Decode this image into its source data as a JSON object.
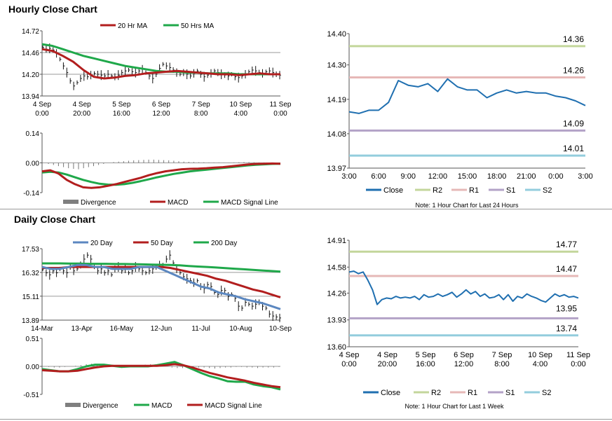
{
  "sections": {
    "hourly_title": "Hourly Close Chart",
    "daily_title": "Daily Close Chart"
  },
  "colors": {
    "red": "#b21e1e",
    "green": "#1fa84a",
    "blue": "#1f6fb0",
    "steel": "#5b87c0",
    "black": "#1a1a1a",
    "gray": "#7f7f7f",
    "r2": "#c3d69b",
    "r1": "#e6b8b7",
    "s1": "#b3a2c7",
    "s2": "#93cddd"
  },
  "chart_data": [
    {
      "id": "hourly_price",
      "type": "line",
      "title": "",
      "legend": [
        "20 Hr MA",
        "50 Hrs MA"
      ],
      "y_ticks": [
        "14.72",
        "14.46",
        "14.20",
        "13.94"
      ],
      "ylim": [
        13.94,
        14.72
      ],
      "x_ticks": [
        [
          "4 Sep",
          "0:00"
        ],
        [
          "4 Sep",
          "20:00"
        ],
        [
          "5 Sep",
          "16:00"
        ],
        [
          "6 Sep",
          "12:00"
        ],
        [
          "7 Sep",
          "8:00"
        ],
        [
          "10 Sep",
          "4:00"
        ],
        [
          "11 Sep",
          "0:00"
        ]
      ],
      "series": [
        {
          "name": "Price",
          "style": "bars",
          "values": [
            14.52,
            14.5,
            14.51,
            14.49,
            14.45,
            14.38,
            14.3,
            14.22,
            14.12,
            14.06,
            14.1,
            14.15,
            14.18,
            14.17,
            14.19,
            14.21,
            14.2,
            14.19,
            14.18,
            14.2,
            14.18,
            14.17,
            14.19,
            14.22,
            14.24,
            14.25,
            14.23,
            14.22,
            14.24,
            14.26,
            14.22,
            14.18,
            14.15,
            14.2,
            14.27,
            14.32,
            14.3,
            14.28,
            14.25,
            14.22,
            14.2,
            14.22,
            14.2,
            14.18,
            14.21,
            14.24,
            14.2,
            14.17,
            14.19,
            14.21,
            14.24,
            14.22,
            14.2,
            14.19,
            14.18,
            14.2,
            14.17,
            14.16,
            14.18,
            14.2,
            14.23,
            14.25,
            14.24,
            14.22,
            14.21,
            14.23,
            14.24,
            14.22,
            14.2,
            14.19
          ]
        },
        {
          "name": "20 Hr MA",
          "values": [
            14.5,
            14.48,
            14.42,
            14.35,
            14.25,
            14.17,
            14.15,
            14.16,
            14.18,
            14.19,
            14.21,
            14.22,
            14.23,
            14.24,
            14.23,
            14.22,
            14.21,
            14.2,
            14.2,
            14.19,
            14.2,
            14.21,
            14.2,
            14.2
          ]
        },
        {
          "name": "50 Hrs MA",
          "values": [
            14.56,
            14.54,
            14.5,
            14.46,
            14.42,
            14.39,
            14.36,
            14.33,
            14.3,
            14.28,
            14.26,
            14.24,
            14.23,
            14.23,
            14.22,
            14.22,
            14.21,
            14.21,
            14.21,
            14.2,
            14.2,
            14.2,
            14.2,
            14.2
          ]
        }
      ]
    },
    {
      "id": "hourly_macd",
      "type": "line",
      "legend": [
        "Divergence",
        "MACD",
        "MACD Signal Line"
      ],
      "y_ticks": [
        "0.14",
        "0.00",
        "-0.14"
      ],
      "ylim": [
        -0.14,
        0.14
      ],
      "series": [
        {
          "name": "Divergence",
          "style": "histogram",
          "values": [
            0.0,
            -0.005,
            -0.01,
            -0.015,
            -0.02,
            -0.025,
            -0.028,
            -0.03,
            -0.025,
            -0.02,
            -0.015,
            -0.01,
            -0.005,
            0.0,
            0.004,
            0.006,
            0.008,
            0.01,
            0.012,
            0.013,
            0.014,
            0.015,
            0.015,
            0.014,
            0.013,
            0.012,
            0.01,
            0.008,
            0.006,
            0.005,
            0.004,
            0.003,
            0.003,
            0.002,
            0.002,
            0.002,
            0.001,
            0.001,
            0.002,
            0.003,
            0.004,
            0.004,
            0.003,
            0.002,
            0.002,
            0.001,
            0.001,
            0.001
          ]
        },
        {
          "name": "MACD",
          "values": [
            -0.04,
            -0.035,
            -0.05,
            -0.08,
            -0.1,
            -0.115,
            -0.118,
            -0.115,
            -0.108,
            -0.1,
            -0.09,
            -0.08,
            -0.07,
            -0.058,
            -0.048,
            -0.04,
            -0.035,
            -0.03,
            -0.028,
            -0.027,
            -0.025,
            -0.022,
            -0.02,
            -0.016,
            -0.012,
            -0.008,
            -0.005,
            -0.004,
            -0.003,
            -0.004
          ]
        },
        {
          "name": "MACD Signal Line",
          "values": [
            -0.045,
            -0.042,
            -0.045,
            -0.055,
            -0.068,
            -0.08,
            -0.09,
            -0.098,
            -0.102,
            -0.103,
            -0.1,
            -0.094,
            -0.086,
            -0.077,
            -0.068,
            -0.06,
            -0.052,
            -0.046,
            -0.04,
            -0.036,
            -0.032,
            -0.028,
            -0.024,
            -0.02,
            -0.016,
            -0.012,
            -0.009,
            -0.007,
            -0.005,
            -0.004
          ]
        }
      ]
    },
    {
      "id": "hourly_24h",
      "type": "line",
      "y_ticks": [
        "14.40",
        "14.30",
        "14.19",
        "14.08",
        "13.97"
      ],
      "ylim": [
        13.97,
        14.4
      ],
      "x_ticks": [
        "3:00",
        "6:00",
        "9:00",
        "12:00",
        "15:00",
        "18:00",
        "21:00",
        "0:00",
        "3:00"
      ],
      "legend": [
        "Close",
        "R2",
        "R1",
        "S1",
        "S2"
      ],
      "note": "Note: 1 Hour Chart for Last 24 Hours",
      "levels": [
        {
          "name": "R2",
          "value": 14.36,
          "label": "14.36"
        },
        {
          "name": "R1",
          "value": 14.26,
          "label": "14.26"
        },
        {
          "name": "S1",
          "value": 14.09,
          "label": "14.09"
        },
        {
          "name": "S2",
          "value": 14.01,
          "label": "14.01"
        }
      ],
      "series": [
        {
          "name": "Close",
          "values": [
            14.15,
            14.145,
            14.155,
            14.155,
            14.18,
            14.25,
            14.235,
            14.23,
            14.24,
            14.215,
            14.255,
            14.23,
            14.22,
            14.22,
            14.195,
            14.21,
            14.22,
            14.21,
            14.215,
            14.21,
            14.21,
            14.2,
            14.195,
            14.185,
            14.17
          ]
        }
      ]
    },
    {
      "id": "daily_price",
      "type": "line",
      "legend": [
        "20 Day",
        "50 Day",
        "200 Day"
      ],
      "y_ticks": [
        "17.53",
        "16.32",
        "15.11",
        "13.89"
      ],
      "ylim": [
        13.89,
        17.53
      ],
      "x_ticks": [
        "14-Mar",
        "13-Apr",
        "16-May",
        "12-Jun",
        "11-Jul",
        "10-Aug",
        "10-Sep"
      ],
      "series": [
        {
          "name": "Price",
          "style": "bars",
          "values": [
            16.5,
            16.3,
            16.2,
            16.4,
            16.3,
            16.5,
            16.4,
            16.3,
            16.6,
            16.4,
            16.5,
            16.7,
            17.0,
            17.2,
            17.0,
            16.6,
            16.4,
            16.5,
            16.3,
            16.4,
            16.2,
            16.5,
            16.6,
            16.4,
            16.5,
            16.3,
            16.4,
            16.6,
            16.5,
            16.4,
            16.3,
            16.4,
            16.5,
            16.6,
            16.7,
            16.7,
            17.0,
            17.2,
            16.8,
            16.5,
            16.3,
            16.1,
            16.0,
            15.9,
            15.8,
            15.9,
            15.6,
            15.5,
            15.7,
            15.6,
            15.3,
            15.2,
            15.4,
            15.4,
            15.1,
            15.2,
            15.0,
            14.6,
            14.5,
            14.8,
            14.7,
            14.6,
            14.7,
            14.8,
            14.6,
            14.5,
            14.2,
            14.1,
            14.05,
            14.0
          ]
        },
        {
          "name": "20 Day",
          "values": [
            16.6,
            16.5,
            16.5,
            16.6,
            16.7,
            16.7,
            16.6,
            16.6,
            16.5,
            16.5,
            16.5,
            16.6,
            16.6,
            16.6,
            16.4,
            16.2,
            16.0,
            15.8,
            15.6,
            15.5,
            15.3,
            15.2,
            15.1,
            14.95,
            14.85,
            14.75,
            14.6,
            14.45
          ]
        },
        {
          "name": "50 Day",
          "values": [
            16.55,
            16.55,
            16.55,
            16.6,
            16.6,
            16.6,
            16.6,
            16.6,
            16.6,
            16.6,
            16.6,
            16.6,
            16.6,
            16.6,
            16.55,
            16.45,
            16.35,
            16.25,
            16.15,
            16.0,
            15.9,
            15.75,
            15.6,
            15.45,
            15.35,
            15.2,
            15.05
          ]
        },
        {
          "name": "200 Day",
          "values": [
            16.78,
            16.78,
            16.78,
            16.77,
            16.77,
            16.76,
            16.76,
            16.76,
            16.75,
            16.75,
            16.74,
            16.73,
            16.72,
            16.71,
            16.7,
            16.68,
            16.65,
            16.62,
            16.6,
            16.57,
            16.54,
            16.51,
            16.48,
            16.45,
            16.42,
            16.39,
            16.36
          ]
        }
      ]
    },
    {
      "id": "daily_macd",
      "type": "line",
      "legend": [
        "Divergence",
        "MACD",
        "MACD Signal Line"
      ],
      "y_ticks": [
        "0.51",
        "0.00",
        "-0.51"
      ],
      "ylim": [
        -0.51,
        0.51
      ],
      "series": [
        {
          "name": "Divergence",
          "style": "histogram",
          "values": [
            0.0,
            -0.01,
            -0.02,
            -0.02,
            -0.01,
            0.0,
            0.01,
            0.02,
            0.04,
            0.05,
            0.04,
            0.03,
            0.02,
            0.01,
            0.0,
            0.0,
            0.0,
            0.01,
            0.02,
            0.03,
            0.04,
            0.03,
            0.02,
            0.0,
            -0.02,
            -0.03,
            -0.03,
            -0.03,
            -0.02,
            -0.02,
            -0.02,
            -0.03,
            -0.04,
            -0.03,
            -0.02,
            -0.02,
            -0.01,
            -0.01,
            -0.02,
            -0.02,
            -0.03,
            -0.02,
            -0.02,
            -0.02,
            -0.01
          ]
        },
        {
          "name": "MACD",
          "values": [
            -0.05,
            -0.07,
            -0.09,
            -0.09,
            -0.05,
            0.0,
            0.03,
            0.03,
            0.01,
            -0.01,
            0.0,
            0.0,
            0.0,
            0.02,
            0.05,
            0.08,
            0.02,
            -0.05,
            -0.12,
            -0.18,
            -0.22,
            -0.27,
            -0.28,
            -0.28,
            -0.33,
            -0.36,
            -0.38,
            -0.42
          ]
        },
        {
          "name": "MACD Signal Line",
          "values": [
            -0.07,
            -0.08,
            -0.09,
            -0.09,
            -0.08,
            -0.05,
            -0.02,
            0.0,
            0.01,
            0.01,
            0.01,
            0.01,
            0.01,
            0.01,
            0.02,
            0.04,
            0.02,
            -0.02,
            -0.07,
            -0.12,
            -0.16,
            -0.2,
            -0.23,
            -0.26,
            -0.3,
            -0.33,
            -0.36,
            -0.38
          ]
        }
      ]
    },
    {
      "id": "weekly_hourly",
      "type": "line",
      "y_ticks": [
        "14.91",
        "14.58",
        "14.26",
        "13.93",
        "13.60"
      ],
      "ylim": [
        13.6,
        14.91
      ],
      "x_ticks": [
        [
          "4 Sep",
          "0:00"
        ],
        [
          "4 Sep",
          "20:00"
        ],
        [
          "5 Sep",
          "16:00"
        ],
        [
          "6 Sep",
          "12:00"
        ],
        [
          "7 Sep",
          "8:00"
        ],
        [
          "10 Sep",
          "4:00"
        ],
        [
          "11 Sep",
          "0:00"
        ]
      ],
      "legend": [
        "Close",
        "R2",
        "R1",
        "S1",
        "S2"
      ],
      "note": "Note: 1 Hour Chart for Last 1 Week",
      "levels": [
        {
          "name": "R2",
          "value": 14.77,
          "label": "14.77"
        },
        {
          "name": "R1",
          "value": 14.47,
          "label": "14.47"
        },
        {
          "name": "S1",
          "value": 13.95,
          "label": "13.95"
        },
        {
          "name": "S2",
          "value": 13.74,
          "label": "13.74"
        }
      ],
      "series": [
        {
          "name": "Close",
          "values": [
            14.52,
            14.53,
            14.5,
            14.52,
            14.42,
            14.3,
            14.12,
            14.18,
            14.2,
            14.19,
            14.22,
            14.2,
            14.21,
            14.2,
            14.22,
            14.18,
            14.24,
            14.21,
            14.22,
            14.25,
            14.22,
            14.24,
            14.27,
            14.21,
            14.25,
            14.3,
            14.25,
            14.28,
            14.22,
            14.25,
            14.2,
            14.21,
            14.24,
            14.18,
            14.24,
            14.16,
            14.22,
            14.2,
            14.25,
            14.22,
            14.2,
            14.17,
            14.15,
            14.2,
            14.25,
            14.22,
            14.24,
            14.21,
            14.22,
            14.2
          ]
        }
      ]
    }
  ]
}
